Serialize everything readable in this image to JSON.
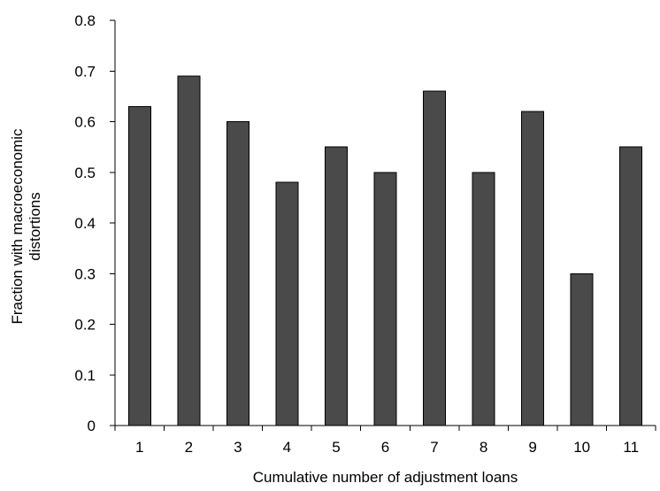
{
  "chart_data": {
    "type": "bar",
    "title": "",
    "categories": [
      "1",
      "2",
      "3",
      "4",
      "5",
      "6",
      "7",
      "8",
      "9",
      "10",
      "11"
    ],
    "values": [
      0.63,
      0.69,
      0.6,
      0.48,
      0.55,
      0.5,
      0.66,
      0.5,
      0.62,
      0.3,
      0.55
    ],
    "xlabel": "Cumulative number of adjustment loans",
    "ylabel_lines": [
      "Fraction with macroeconomic",
      "distortions"
    ],
    "ylim": [
      0,
      0.8
    ],
    "yticks": [
      0,
      0.1,
      0.2,
      0.3,
      0.4,
      0.5,
      0.6,
      0.7,
      0.8
    ],
    "ytick_labels": [
      "0",
      "0.1",
      "0.2",
      "0.3",
      "0.4",
      "0.5",
      "0.6",
      "0.7",
      "0.8"
    ],
    "grid": false,
    "legend": "none",
    "bar_color": "#4a4a4a"
  }
}
